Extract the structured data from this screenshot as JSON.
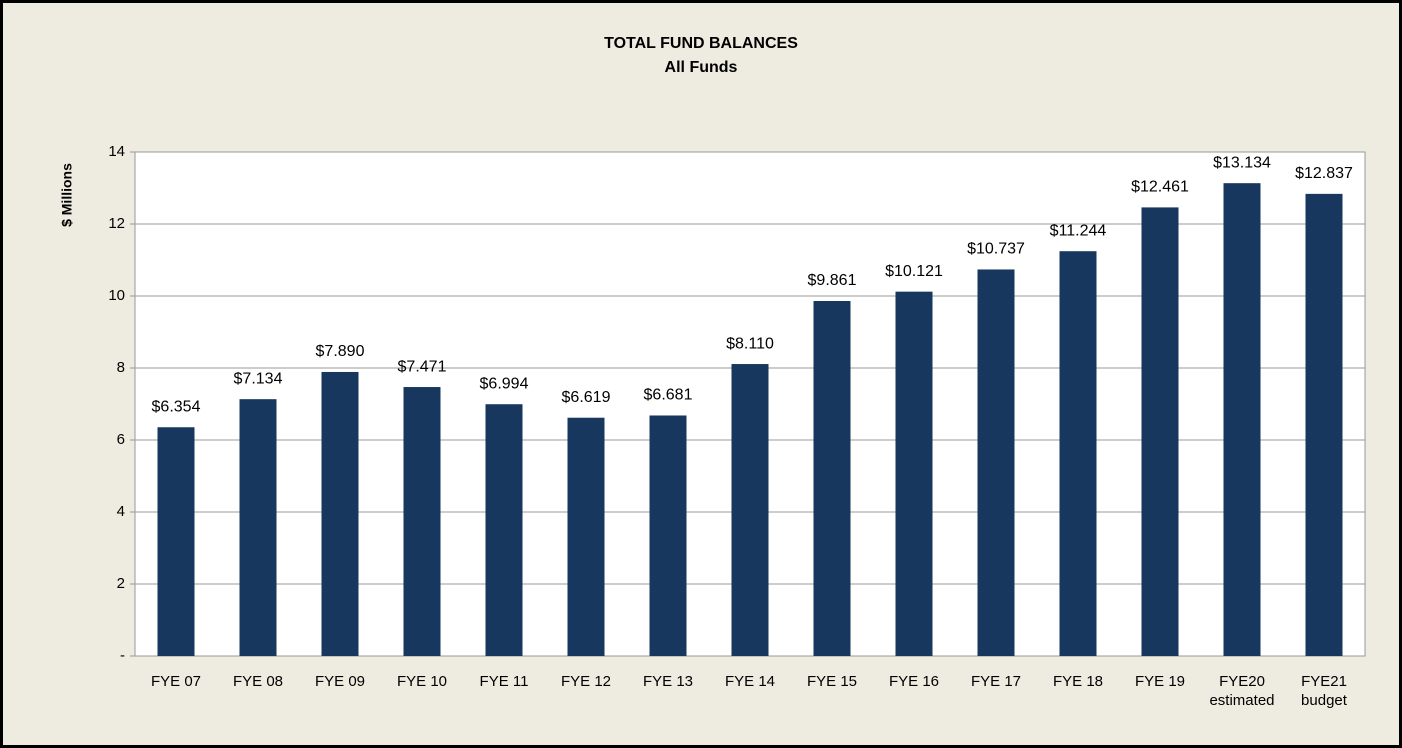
{
  "chart_data": {
    "type": "bar",
    "title": "TOTAL FUND BALANCES",
    "subtitle": "All Funds",
    "y_label": "$ Millions",
    "categories": [
      "FYE 07",
      "FYE 08",
      "FYE 09",
      "FYE 10",
      "FYE 11",
      "FYE 12",
      "FYE 13",
      "FYE 14",
      "FYE 15",
      "FYE 16",
      "FYE 17",
      "FYE 18",
      "FYE 19",
      "FYE20\nestimated",
      "FYE21\nbudget"
    ],
    "values": [
      6.354,
      7.134,
      7.89,
      7.471,
      6.994,
      6.619,
      6.681,
      8.11,
      9.861,
      10.121,
      10.737,
      11.244,
      12.461,
      13.134,
      12.837
    ],
    "value_labels": [
      "$6.354",
      "$7.134",
      "$7.890",
      "$7.471",
      "$6.994",
      "$6.619",
      "$6.681",
      "$8.110",
      "$9.861",
      "$10.121",
      "$10.737",
      "$11.244",
      "$12.461",
      "$13.134",
      "$12.837"
    ],
    "color": "#17375e",
    "ylim": [
      0,
      14
    ],
    "yticks": [
      {
        "value": 0,
        "label": "-"
      },
      2,
      4,
      6,
      8,
      10,
      12,
      14
    ],
    "grid": true
  }
}
